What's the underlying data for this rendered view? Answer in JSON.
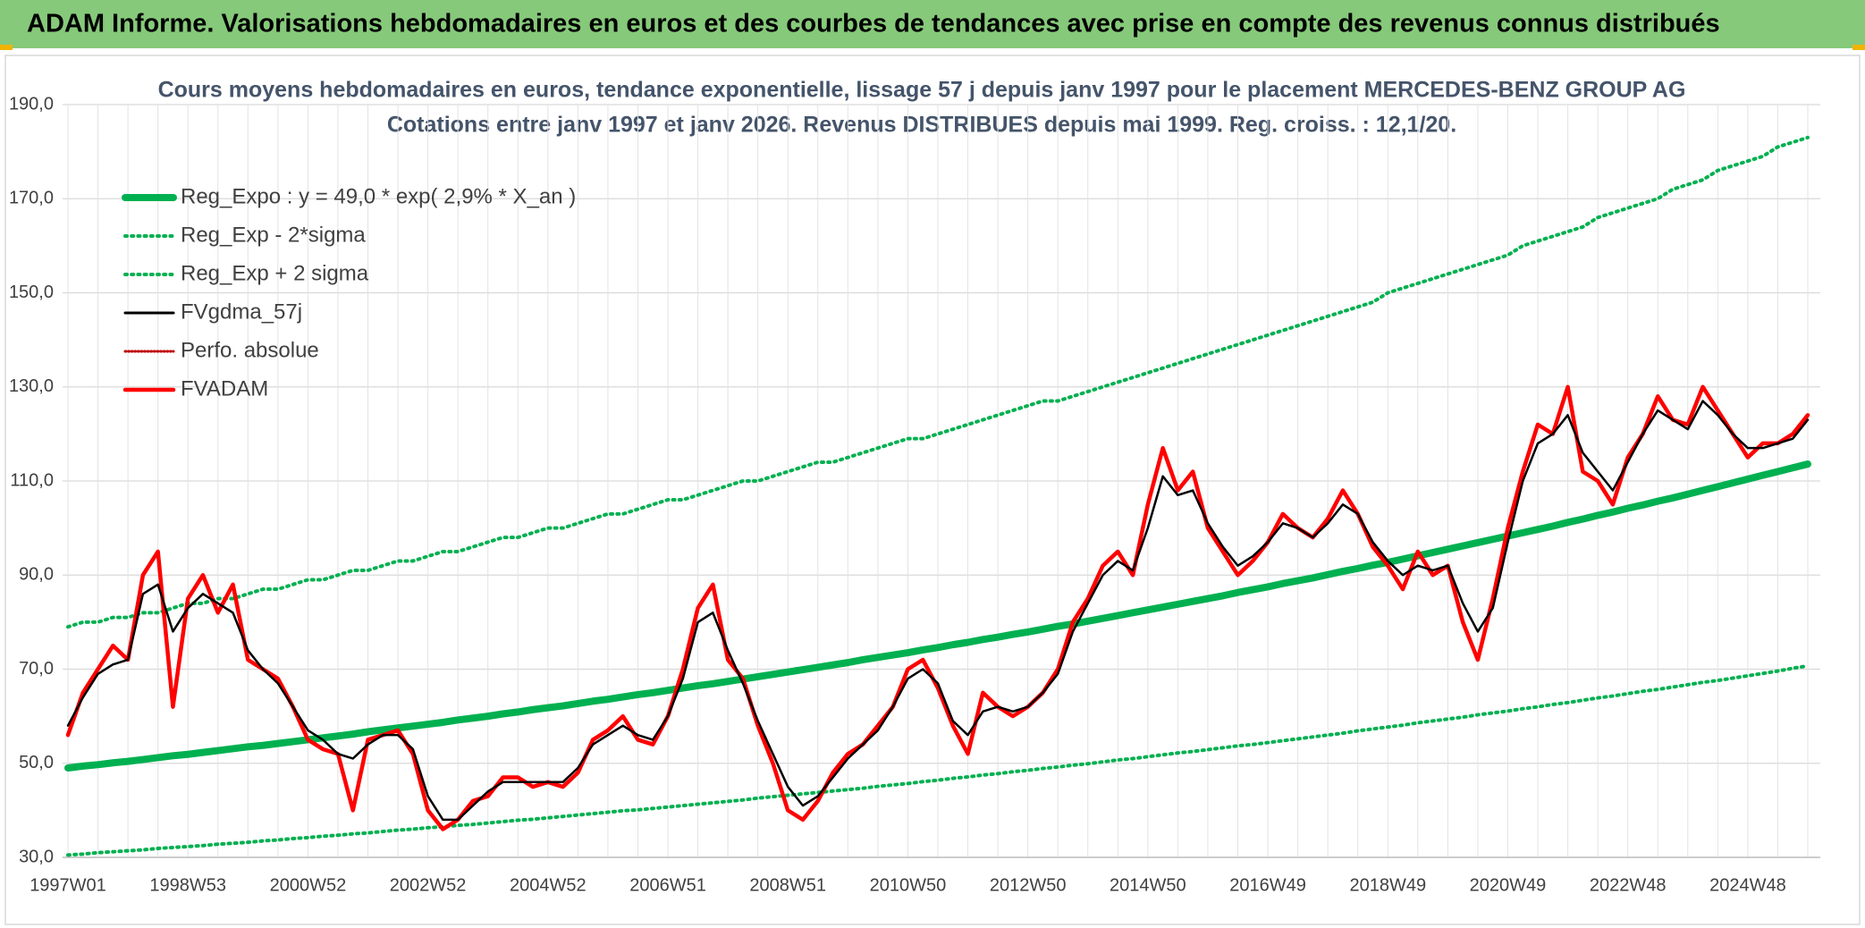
{
  "header": {
    "title": "ADAM Informe. Valorisations hebdomadaires en euros et des courbes de tendances avec prise en compte des revenus connus distribués"
  },
  "chart_data": {
    "type": "line",
    "title": "Cours moyens hebdomadaires en euros, tendance exponentielle, lissage 57 j depuis janv 1997 pour le placement MERCEDES-BENZ GROUP AG",
    "subtitle": "Cotations entre janv 1997 et janv 2026. Revenus DISTRIBUES depuis mai 1999. Reg. croiss. : 12,1/20.",
    "categories": [
      "1997W01",
      null,
      null,
      null,
      null,
      null,
      null,
      null,
      "1998W53",
      null,
      null,
      null,
      null,
      null,
      null,
      null,
      "2000W52",
      null,
      null,
      null,
      null,
      null,
      null,
      null,
      "2002W52",
      null,
      null,
      null,
      null,
      null,
      null,
      null,
      "2004W52",
      null,
      null,
      null,
      null,
      null,
      null,
      null,
      "2006W51",
      null,
      null,
      null,
      null,
      null,
      null,
      null,
      "2008W51",
      null,
      null,
      null,
      null,
      null,
      null,
      null,
      "2010W50",
      null,
      null,
      null,
      null,
      null,
      null,
      null,
      "2012W50",
      null,
      null,
      null,
      null,
      null,
      null,
      null,
      "2014W50",
      null,
      null,
      null,
      null,
      null,
      null,
      null,
      "2016W49",
      null,
      null,
      null,
      null,
      null,
      null,
      null,
      "2018W49",
      null,
      null,
      null,
      null,
      null,
      null,
      null,
      "2020W49",
      null,
      null,
      null,
      null,
      null,
      null,
      null,
      "2022W48",
      null,
      null,
      null,
      null,
      null,
      null,
      null,
      "2024W48",
      null,
      null,
      null,
      null
    ],
    "ylim": [
      30,
      190
    ],
    "yticks": [
      {
        "value": 30,
        "label": "30,0"
      },
      {
        "value": 50,
        "label": "50,0"
      },
      {
        "value": 70,
        "label": "70,0"
      },
      {
        "value": 90,
        "label": "90,0"
      },
      {
        "value": 110,
        "label": "110,0"
      },
      {
        "value": 130,
        "label": "130,0"
      },
      {
        "value": 150,
        "label": "150,0"
      },
      {
        "value": 170,
        "label": "170,0"
      },
      {
        "value": 190,
        "label": "190,0"
      }
    ],
    "grid": true,
    "legend": "upper-left",
    "series": [
      {
        "name": "Reg_Expo : y = 49,0 * exp( 2,9% *  X_an )",
        "color": "#00b050",
        "width": 8,
        "values": [
          49.0,
          49.4,
          49.7,
          50.1,
          50.4,
          50.8,
          51.2,
          51.6,
          51.9,
          52.3,
          52.7,
          53.1,
          53.5,
          53.8,
          54.2,
          54.6,
          55.0,
          55.4,
          55.8,
          56.2,
          56.7,
          57.1,
          57.5,
          57.9,
          58.3,
          58.7,
          59.2,
          59.6,
          60.0,
          60.5,
          60.9,
          61.4,
          61.8,
          62.2,
          62.7,
          63.2,
          63.6,
          64.1,
          64.6,
          65.0,
          65.5,
          66.0,
          66.5,
          66.9,
          67.4,
          67.9,
          68.4,
          68.9,
          69.4,
          69.9,
          70.4,
          70.9,
          71.4,
          72.0,
          72.5,
          73.0,
          73.5,
          74.1,
          74.6,
          75.2,
          75.7,
          76.3,
          76.8,
          77.4,
          77.9,
          78.5,
          79.1,
          79.6,
          80.2,
          80.8,
          81.4,
          82.0,
          82.6,
          83.2,
          83.8,
          84.4,
          85.0,
          85.6,
          86.3,
          86.9,
          87.5,
          88.2,
          88.8,
          89.4,
          90.1,
          90.8,
          91.4,
          92.1,
          92.7,
          93.4,
          94.1,
          94.8,
          95.5,
          96.2,
          96.9,
          97.6,
          98.3,
          99.0,
          99.7,
          100.4,
          101.2,
          101.9,
          102.7,
          103.4,
          104.2,
          104.9,
          105.7,
          106.4,
          107.2,
          108.0,
          108.8,
          109.6,
          110.4,
          111.2,
          112.0,
          112.8,
          113.6
        ]
      },
      {
        "name": "Reg_Exp - 2*sigma",
        "color": "#00b050",
        "width": 4,
        "dash": "dotted",
        "values": [
          30.5,
          30.7,
          31.0,
          31.2,
          31.4,
          31.6,
          31.9,
          32.1,
          32.3,
          32.5,
          32.8,
          33.0,
          33.2,
          33.5,
          33.7,
          34.0,
          34.2,
          34.5,
          34.7,
          35.0,
          35.2,
          35.5,
          35.8,
          36.0,
          36.3,
          36.5,
          36.8,
          37.0,
          37.3,
          37.6,
          37.9,
          38.1,
          38.4,
          38.7,
          39.0,
          39.3,
          39.6,
          39.9,
          40.1,
          40.4,
          40.7,
          41.0,
          41.3,
          41.6,
          41.9,
          42.2,
          42.6,
          42.9,
          43.2,
          43.5,
          43.8,
          44.1,
          44.4,
          44.7,
          45.1,
          45.4,
          45.7,
          46.1,
          46.4,
          46.8,
          47.1,
          47.5,
          47.8,
          48.2,
          48.5,
          48.9,
          49.2,
          49.6,
          49.9,
          50.3,
          50.7,
          51.0,
          51.4,
          51.8,
          52.2,
          52.5,
          52.9,
          53.3,
          53.7,
          54.0,
          54.4,
          54.8,
          55.2,
          55.6,
          56.0,
          56.4,
          56.9,
          57.3,
          57.7,
          58.1,
          58.6,
          59.0,
          59.4,
          59.8,
          60.3,
          60.7,
          61.1,
          61.6,
          62.0,
          62.5,
          62.9,
          63.4,
          63.9,
          64.3,
          64.8,
          65.3,
          65.7,
          66.2,
          66.7,
          67.2,
          67.6,
          68.1,
          68.6,
          69.1,
          69.6,
          70.2,
          70.7
        ]
      },
      {
        "name": "Reg_Exp + 2 sigma",
        "color": "#00b050",
        "width": 4,
        "dash": "dotted",
        "values": [
          79,
          80,
          80,
          81,
          81,
          82,
          82,
          83,
          84,
          84,
          85,
          85,
          86,
          87,
          87,
          88,
          89,
          89,
          90,
          91,
          91,
          92,
          93,
          93,
          94,
          95,
          95,
          96,
          97,
          98,
          98,
          99,
          100,
          100,
          101,
          102,
          103,
          103,
          104,
          105,
          106,
          106,
          107,
          108,
          109,
          110,
          110,
          111,
          112,
          113,
          114,
          114,
          115,
          116,
          117,
          118,
          119,
          119,
          120,
          121,
          122,
          123,
          124,
          125,
          126,
          127,
          127,
          128,
          129,
          130,
          131,
          132,
          133,
          134,
          135,
          136,
          137,
          138,
          139,
          140,
          141,
          142,
          143,
          144,
          145,
          146,
          147,
          148,
          150,
          151,
          152,
          153,
          154,
          155,
          156,
          157,
          158,
          160,
          161,
          162,
          163,
          164,
          166,
          167,
          168,
          169,
          170,
          172,
          173,
          174,
          176,
          177,
          178,
          179,
          181,
          182,
          183
        ]
      },
      {
        "name": "FVgdma_57j",
        "color": "#000000",
        "width": 2.5,
        "values": [
          58,
          64,
          69,
          71,
          72,
          86,
          88,
          78,
          83,
          86,
          84,
          82,
          74,
          70,
          67,
          62,
          57,
          55,
          52,
          51,
          54,
          56,
          56,
          53,
          43,
          38,
          38,
          41,
          44,
          46,
          46,
          46,
          46,
          46,
          49,
          54,
          56,
          58,
          56,
          55,
          60,
          68,
          80,
          82,
          74,
          67,
          59,
          52,
          45,
          41,
          43,
          47,
          51,
          54,
          57,
          62,
          68,
          70,
          67,
          59,
          56,
          61,
          62,
          61,
          62,
          65,
          69,
          78,
          84,
          90,
          93,
          91,
          100,
          111,
          107,
          108,
          101,
          96,
          92,
          94,
          97,
          101,
          100,
          98,
          101,
          105,
          103,
          97,
          93,
          90,
          92,
          91,
          92,
          84,
          78,
          83,
          97,
          110,
          118,
          120,
          124,
          116,
          112,
          108,
          114,
          120,
          125,
          123,
          121,
          127,
          124,
          120,
          117,
          117,
          118,
          119,
          123
        ]
      },
      {
        "name": "Perfo. absolue",
        "color": "#c00000",
        "width": 2,
        "dash": "dotted",
        "values": [
          null,
          null,
          null,
          null,
          null,
          null,
          null,
          null,
          null,
          null,
          null,
          null,
          null,
          null,
          null,
          null,
          null,
          null,
          null,
          null,
          null,
          null,
          null,
          null,
          null,
          null,
          null,
          null,
          null,
          null,
          null,
          null,
          null,
          null,
          null,
          null,
          null,
          null,
          null,
          null,
          null,
          null,
          null,
          null,
          null,
          null,
          null,
          null,
          null,
          null,
          null,
          null,
          null,
          null,
          null,
          null,
          null,
          null,
          null,
          null,
          null,
          null,
          null,
          null,
          null,
          null,
          null,
          null,
          null,
          null,
          null,
          null,
          null,
          null,
          null,
          null,
          null,
          null,
          null,
          null,
          null,
          null,
          null,
          null,
          null,
          null,
          null,
          null,
          null,
          null,
          null,
          null,
          null,
          null,
          null,
          null,
          null,
          null,
          null,
          null,
          null,
          null,
          null,
          null,
          null,
          null,
          null,
          null,
          null,
          null,
          null,
          null,
          null,
          null,
          null,
          null,
          null
        ]
      },
      {
        "name": "FVADAM",
        "color": "#ff0000",
        "width": 4.5,
        "values": [
          56,
          65,
          70,
          75,
          72,
          90,
          95,
          62,
          85,
          90,
          82,
          88,
          72,
          70,
          68,
          62,
          55,
          53,
          52,
          40,
          55,
          56,
          57,
          52,
          40,
          36,
          38,
          42,
          43,
          47,
          47,
          45,
          46,
          45,
          48,
          55,
          57,
          60,
          55,
          54,
          60,
          70,
          83,
          88,
          72,
          68,
          58,
          50,
          40,
          38,
          42,
          48,
          52,
          54,
          58,
          62,
          70,
          72,
          66,
          58,
          52,
          65,
          62,
          60,
          62,
          65,
          70,
          80,
          85,
          92,
          95,
          90,
          105,
          117,
          108,
          112,
          100,
          95,
          90,
          93,
          97,
          103,
          100,
          98,
          102,
          108,
          103,
          96,
          92,
          87,
          95,
          90,
          92,
          80,
          72,
          85,
          100,
          112,
          122,
          120,
          130,
          112,
          110,
          105,
          115,
          120,
          128,
          123,
          122,
          130,
          125,
          120,
          115,
          118,
          118,
          120,
          124
        ]
      }
    ]
  }
}
